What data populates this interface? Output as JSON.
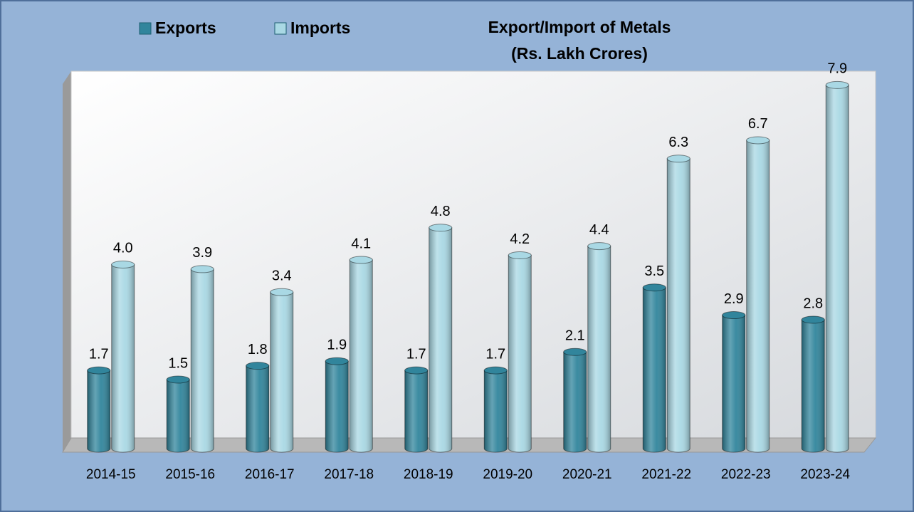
{
  "chart_data": {
    "type": "bar",
    "title": "Export/Import of Metals",
    "subtitle": "(Rs. Lakh Crores)",
    "categories": [
      "2014-15",
      "2015-16",
      "2016-17",
      "2017-18",
      "2018-19",
      "2019-20",
      "2020-21",
      "2021-22",
      "2022-23",
      "2023-24"
    ],
    "series": [
      {
        "name": "Exports",
        "color": "#31859c",
        "values": [
          1.7,
          1.5,
          1.8,
          1.9,
          1.7,
          1.7,
          2.1,
          3.5,
          2.9,
          2.8
        ]
      },
      {
        "name": "Imports",
        "color": "#a9d8e4",
        "values": [
          4.0,
          3.9,
          3.4,
          4.1,
          4.8,
          4.2,
          4.4,
          6.3,
          6.7,
          7.9
        ],
        "value_labels": [
          "4.0",
          "3.9",
          "3.4",
          "4.1",
          "4.8",
          "4.2",
          "4.4",
          "6.3",
          "6.7",
          "7.9"
        ]
      }
    ],
    "ylim": [
      0,
      8.2
    ],
    "legend": "top-left"
  }
}
